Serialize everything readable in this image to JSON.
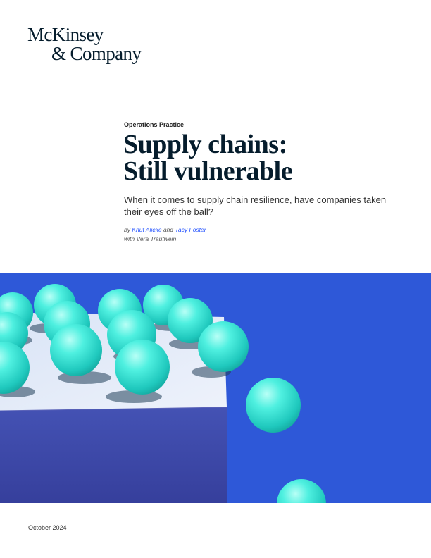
{
  "publisher": {
    "logo_line1": "McKinsey",
    "logo_line2": "& Company"
  },
  "article": {
    "practice": "Operations Practice",
    "title_line1": "Supply chains:",
    "title_line2": "Still vulnerable",
    "subtitle": "When it comes to supply chain resilience, have companies taken their eyes off the ball?",
    "by_prefix": "by",
    "author1": "Knut Alicke",
    "and_word": "and",
    "author2": "Tacy Foster",
    "contributor": "with Vera Trautwein",
    "date": "October 2024"
  },
  "colors": {
    "brand_navy": "#051c2c",
    "hero_blue": "#2e58d8",
    "ball_cyan": "#3ee6d8",
    "link_blue": "#2251ff"
  },
  "hero_image": {
    "icon": "balls-on-cube-illustration"
  }
}
